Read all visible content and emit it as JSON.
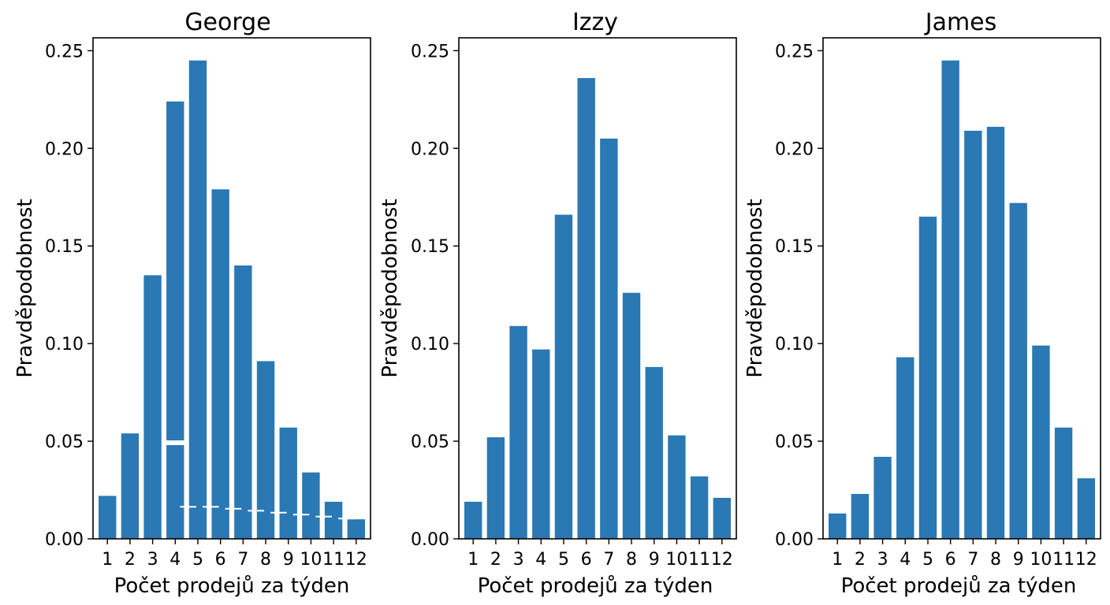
{
  "colors": {
    "bar": "#2a78b4",
    "axis": "#000000",
    "background": "#ffffff"
  },
  "chart_data": [
    {
      "type": "bar",
      "title": "George",
      "xlabel": "Počet prodejů za týden",
      "ylabel": "Pravděpodobnost",
      "categories": [
        "1",
        "2",
        "3",
        "4",
        "5",
        "6",
        "7",
        "8",
        "9",
        "10",
        "11",
        "12"
      ],
      "values": [
        0.022,
        0.054,
        0.135,
        0.224,
        0.245,
        0.179,
        0.14,
        0.091,
        0.057,
        0.034,
        0.019,
        0.01
      ],
      "artifacts": {
        "tall_bar_4_partial": 0.048,
        "overlay_values": [
          0.016,
          0.016,
          0.015,
          0.014,
          0.013,
          0.012,
          0.011,
          0.01
        ]
      },
      "yticks": [
        "0.00",
        "0.05",
        "0.10",
        "0.15",
        "0.20",
        "0.25"
      ],
      "ylim": [
        0,
        0.2566
      ],
      "grid": false
    },
    {
      "type": "bar",
      "title": "Izzy",
      "xlabel": "Počet prodejů za týden",
      "ylabel": "Pravděpodobnost",
      "categories": [
        "1",
        "2",
        "3",
        "4",
        "5",
        "6",
        "7",
        "8",
        "9",
        "10",
        "11",
        "12"
      ],
      "values": [
        0.019,
        0.052,
        0.109,
        0.097,
        0.166,
        0.236,
        0.205,
        0.126,
        0.088,
        0.053,
        0.032,
        0.021
      ],
      "yticks": [
        "0.00",
        "0.05",
        "0.10",
        "0.15",
        "0.20",
        "0.25"
      ],
      "ylim": [
        0,
        0.2566
      ],
      "grid": false
    },
    {
      "type": "bar",
      "title": "James",
      "xlabel": "Počet prodejů za týden",
      "ylabel": "Pravděpodobnost",
      "categories": [
        "1",
        "2",
        "3",
        "4",
        "5",
        "6",
        "7",
        "8",
        "9",
        "10",
        "11",
        "12"
      ],
      "values": [
        0.013,
        0.023,
        0.042,
        0.093,
        0.165,
        0.245,
        0.209,
        0.211,
        0.172,
        0.099,
        0.057,
        0.031
      ],
      "yticks": [
        "0.00",
        "0.05",
        "0.10",
        "0.15",
        "0.20",
        "0.25"
      ],
      "ylim": [
        0,
        0.2566
      ],
      "grid": false
    }
  ]
}
